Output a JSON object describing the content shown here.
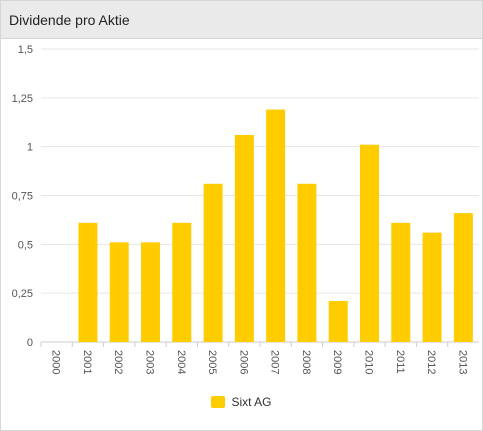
{
  "header": {
    "title": "Dividende pro Aktie"
  },
  "colors": {
    "bar": "#FFCC00",
    "grid": "#e6e6e6",
    "axis": "#cccccc"
  },
  "chart_data": {
    "type": "bar",
    "title": "Dividende pro Aktie",
    "categories": [
      "2000",
      "2001",
      "2002",
      "2003",
      "2004",
      "2005",
      "2006",
      "2007",
      "2008",
      "2009",
      "2010",
      "2011",
      "2012",
      "2013"
    ],
    "series": [
      {
        "name": "Sixt AG",
        "values": [
          0,
          0.61,
          0.51,
          0.51,
          0.61,
          0.81,
          1.06,
          1.19,
          0.81,
          0.21,
          1.01,
          0.61,
          0.56,
          0.66
        ]
      }
    ],
    "yticks": [
      "0",
      "0,25",
      "0,5",
      "0,75",
      "1",
      "1,25",
      "1,5"
    ],
    "ylim": [
      0,
      1.5
    ],
    "grid": true,
    "legend_position": "bottom-center"
  },
  "legend": {
    "label": "Sixt AG"
  }
}
